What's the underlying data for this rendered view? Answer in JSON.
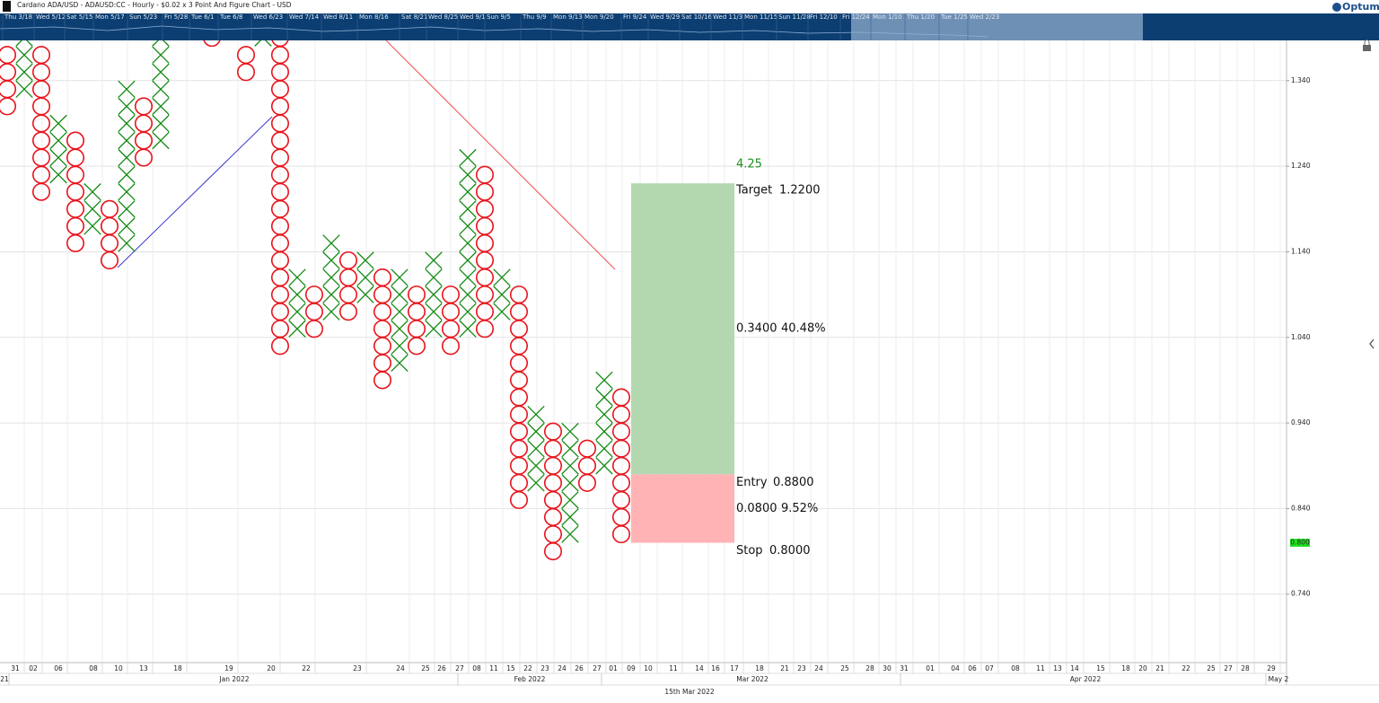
{
  "header": {
    "title": "Cardano ADA/USD - ADAUSD:CC - Hourly - $0.02 x 3 Point And Figure Chart - USD",
    "logo": "Optuma"
  },
  "navigator": {
    "labels": [
      "Thu 3/18",
      "Wed 5/12",
      "Sat 5/15",
      "Mon 5/17",
      "Sun 5/23",
      "Fri 5/28",
      "Tue 6/1",
      "Tue 6/8",
      "Wed 6/23",
      "Wed 7/14",
      "Wed 8/11",
      "Mon 8/16",
      "Sat 8/21",
      "Wed 8/25",
      "Wed 9/1",
      "Sun 9/5",
      "Thu 9/9",
      "Mon 9/13",
      "Mon 9/20",
      "Fri 9/24",
      "Wed 9/29",
      "Sat 10/16",
      "Wed 11/3",
      "Mon 11/15",
      "Sun 11/28",
      "Fri 12/10",
      "Fri 12/24",
      "Mon 1/10",
      "Thu 1/20",
      "Tue 1/25",
      "Wed 2/23"
    ]
  },
  "chart_data": {
    "type": "pnf",
    "box_size": 0.02,
    "colors": {
      "X": "#138a13",
      "O": "#e8141c"
    },
    "columns": [
      {
        "type": "O",
        "high": 1.37,
        "low": 1.31
      },
      {
        "type": "X",
        "high": 1.39,
        "low": 1.33
      },
      {
        "type": "O",
        "high": 1.37,
        "low": 1.21
      },
      {
        "type": "X",
        "high": 1.29,
        "low": 1.23
      },
      {
        "type": "O",
        "high": 1.27,
        "low": 1.15
      },
      {
        "type": "X",
        "high": 1.21,
        "low": 1.17
      },
      {
        "type": "O",
        "high": 1.19,
        "low": 1.13
      },
      {
        "type": "X",
        "high": 1.33,
        "low": 1.15
      },
      {
        "type": "O",
        "high": 1.31,
        "low": 1.25
      },
      {
        "type": "X",
        "high": 1.39,
        "low": 1.27
      },
      {
        "type": "O",
        "high": null,
        "low": null
      },
      {
        "type": "X",
        "high": null,
        "low": null
      },
      {
        "type": "O",
        "high": 1.39,
        "low": 1.39
      },
      {
        "type": "X",
        "high": null,
        "low": null
      },
      {
        "type": "O",
        "high": 1.37,
        "low": 1.35
      },
      {
        "type": "X",
        "high": 1.39,
        "low": 1.39
      },
      {
        "type": "O",
        "high": 1.39,
        "low": 1.03
      },
      {
        "type": "X",
        "high": 1.11,
        "low": 1.05
      },
      {
        "type": "O",
        "high": 1.09,
        "low": 1.05
      },
      {
        "type": "X",
        "high": 1.15,
        "low": 1.07
      },
      {
        "type": "O",
        "high": 1.13,
        "low": 1.07
      },
      {
        "type": "X",
        "high": 1.13,
        "low": 1.09
      },
      {
        "type": "O",
        "high": 1.11,
        "low": 0.99
      },
      {
        "type": "X",
        "high": 1.11,
        "low": 1.01
      },
      {
        "type": "O",
        "high": 1.09,
        "low": 1.03
      },
      {
        "type": "X",
        "high": 1.13,
        "low": 1.05
      },
      {
        "type": "O",
        "high": 1.09,
        "low": 1.03
      },
      {
        "type": "X",
        "high": 1.25,
        "low": 1.05
      },
      {
        "type": "O",
        "high": 1.23,
        "low": 1.05
      },
      {
        "type": "X",
        "high": 1.11,
        "low": 1.07
      },
      {
        "type": "O",
        "high": 1.09,
        "low": 0.85
      },
      {
        "type": "X",
        "high": 0.95,
        "low": 0.87
      },
      {
        "type": "O",
        "high": 0.93,
        "low": 0.79
      },
      {
        "type": "X",
        "high": 0.93,
        "low": 0.81
      },
      {
        "type": "O",
        "high": 0.91,
        "low": 0.87
      },
      {
        "type": "X",
        "high": 0.99,
        "low": 0.89
      },
      {
        "type": "O",
        "high": 0.97,
        "low": 0.81
      }
    ],
    "ylim": [
      0.66,
      1.387
    ],
    "yticks": [
      {
        "value": 0.74,
        "label": "0.740"
      },
      {
        "value": 0.84,
        "label": "0.840"
      },
      {
        "value": 0.94,
        "label": "0.940"
      },
      {
        "value": 1.04,
        "label": "1.040"
      },
      {
        "value": 1.14,
        "label": "1.140"
      },
      {
        "value": 1.24,
        "label": "1.240"
      },
      {
        "value": 1.34,
        "label": "1.340"
      }
    ],
    "grid": true,
    "last_price": {
      "value": 0.8,
      "label": "0.800",
      "color": "#22e022"
    },
    "x_labels": [
      "31",
      "02",
      "06",
      "08",
      "10",
      "13",
      "18",
      "19",
      "20",
      "22",
      "23",
      "24",
      "25",
      "26",
      "27",
      "08",
      "11",
      "15",
      "22",
      "23",
      "24",
      "26",
      "27",
      "01",
      "09",
      "10",
      "11",
      "14",
      "16",
      "17",
      "18",
      "21",
      "23",
      "24",
      "25",
      "28",
      "30",
      "31",
      "01",
      "04",
      "06",
      "07",
      "08",
      "11",
      "13",
      "14",
      "15",
      "18",
      "20",
      "21",
      "22",
      "25",
      "27",
      "28",
      "29"
    ],
    "x_groups": [
      "21",
      "Jan 2022",
      "Feb 2022",
      "Mar 2022",
      "Apr 2022",
      "May 2"
    ],
    "x_title": "15th Mar 2022",
    "risk_reward": {
      "ratio": 4.25,
      "target": {
        "name": "Target",
        "value": 1.22,
        "label": "1.2200"
      },
      "entry": {
        "name": "Entry",
        "value": 0.88,
        "label": "0.8800"
      },
      "stop": {
        "name": "Stop",
        "value": 0.8,
        "label": "0.8000"
      },
      "reward": {
        "value": 0.34,
        "label": "0.3400"
      },
      "reward_pct": {
        "value": 40.48,
        "label": "40.48%"
      },
      "risk": {
        "value": 0.08,
        "label": "0.0800"
      },
      "risk_pct": {
        "value": 9.52,
        "label": "9.52%"
      },
      "colors": {
        "reward": "#b3d8b0",
        "risk": "#ffb3b5",
        "ratio": "#1f8f1f"
      }
    }
  }
}
